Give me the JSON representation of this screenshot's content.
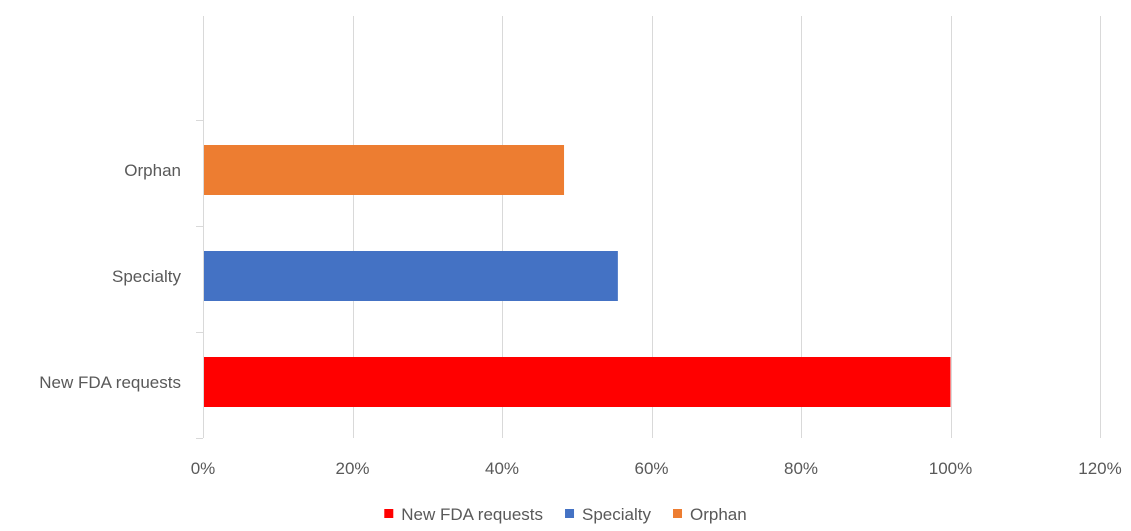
{
  "chart_data": {
    "type": "bar",
    "orientation": "horizontal",
    "categories": [
      "New FDA requests",
      "Specialty",
      "Orphan"
    ],
    "values": [
      1.0,
      0.555,
      0.483
    ],
    "value_format": "percent",
    "xlim": [
      0,
      1.2
    ],
    "xticks": [
      0,
      0.2,
      0.4,
      0.6,
      0.8,
      1.0,
      1.2
    ],
    "xtick_labels": [
      "0%",
      "20%",
      "40%",
      "60%",
      "80%",
      "100%",
      "120%"
    ],
    "grid": true,
    "legend": {
      "position": "bottom",
      "entries": [
        "New FDA requests",
        "Specialty",
        "Orphan"
      ]
    },
    "colors": {
      "New FDA requests": "#ff0000",
      "Specialty": "#4472c4",
      "Orphan": "#ed7d31"
    },
    "title": "",
    "xlabel": "",
    "ylabel": ""
  }
}
